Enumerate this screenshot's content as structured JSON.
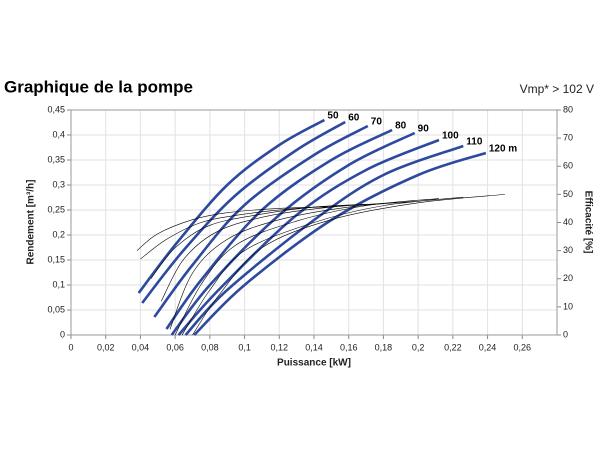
{
  "chart_data": {
    "type": "line",
    "title": "Graphique de la pompe",
    "subtitle": "Vmp* > 102 V",
    "x_label": "Puissance [kW]",
    "y_label": "Rendement [m³/h]",
    "y2_label": "Efficacité [%]",
    "grid": true,
    "xlim": [
      0,
      0.28
    ],
    "xticks": [
      0,
      {
        "value": 0.02,
        "label": "0,02"
      },
      {
        "value": 0.04,
        "label": "0,04"
      },
      {
        "value": 0.06,
        "label": "0,06"
      },
      {
        "value": 0.08,
        "label": "0,08"
      },
      {
        "value": 0.1,
        "label": "0,1"
      },
      {
        "value": 0.12,
        "label": "0,12"
      },
      {
        "value": 0.14,
        "label": "0,14"
      },
      {
        "value": 0.16,
        "label": "0,16"
      },
      {
        "value": 0.18,
        "label": "0,18"
      },
      {
        "value": 0.2,
        "label": "0,2"
      },
      {
        "value": 0.22,
        "label": "0,22"
      },
      {
        "value": 0.24,
        "label": "0,24"
      },
      {
        "value": 0.26,
        "label": "0,26"
      }
    ],
    "ylim": [
      0,
      0.45
    ],
    "yticks": [
      0,
      {
        "value": 0.05,
        "label": "0,05"
      },
      {
        "value": 0.1,
        "label": "0,1"
      },
      {
        "value": 0.15,
        "label": "0,15"
      },
      {
        "value": 0.2,
        "label": "0,2"
      },
      {
        "value": 0.25,
        "label": "0,25"
      },
      {
        "value": 0.3,
        "label": "0,3"
      },
      {
        "value": 0.35,
        "label": "0,35"
      },
      {
        "value": 0.4,
        "label": "0,4"
      },
      {
        "value": 0.45,
        "label": "0,45"
      }
    ],
    "y2lim": [
      0,
      80
    ],
    "y2ticks": [
      0,
      10,
      20,
      30,
      40,
      50,
      60,
      70,
      80
    ],
    "series": [
      {
        "name": "50",
        "color": "#2e4a9e",
        "x": [
          0.039,
          0.06,
          0.09,
          0.12,
          0.146
        ],
        "values": [
          0.084,
          0.18,
          0.3,
          0.38,
          0.43
        ]
      },
      {
        "name": "60",
        "color": "#2e4a9e",
        "x": [
          0.041,
          0.065,
          0.095,
          0.13,
          0.158
        ],
        "values": [
          0.064,
          0.17,
          0.28,
          0.37,
          0.426
        ]
      },
      {
        "name": "70",
        "color": "#2e4a9e",
        "x": [
          0.048,
          0.07,
          0.1,
          0.14,
          0.171
        ],
        "values": [
          0.036,
          0.14,
          0.26,
          0.36,
          0.418
        ]
      },
      {
        "name": "80",
        "color": "#2e4a9e",
        "x": [
          0.055,
          0.075,
          0.11,
          0.15,
          0.185
        ],
        "values": [
          0.012,
          0.11,
          0.25,
          0.35,
          0.41
        ]
      },
      {
        "name": "90",
        "color": "#2e4a9e",
        "x": [
          0.058,
          0.08,
          0.12,
          0.16,
          0.198
        ],
        "values": [
          0.0,
          0.1,
          0.24,
          0.34,
          0.404
        ]
      },
      {
        "name": "100",
        "color": "#2e4a9e",
        "x": [
          0.062,
          0.085,
          0.13,
          0.17,
          0.212
        ],
        "values": [
          0.0,
          0.09,
          0.24,
          0.33,
          0.39
        ]
      },
      {
        "name": "110",
        "color": "#2e4a9e",
        "x": [
          0.066,
          0.09,
          0.14,
          0.18,
          0.226
        ],
        "values": [
          0.0,
          0.09,
          0.23,
          0.32,
          0.378
        ]
      },
      {
        "name": "120 m",
        "color": "#2e4a9e",
        "x": [
          0.071,
          0.1,
          0.15,
          0.2,
          0.239
        ],
        "values": [
          0.0,
          0.1,
          0.23,
          0.32,
          0.364
        ]
      },
      {
        "color": "#000000",
        "axis": "y2",
        "x": [
          0.038,
          0.05,
          0.07,
          0.09,
          0.12,
          0.148
        ],
        "values": [
          30,
          36,
          41,
          43.5,
          45,
          45.5
        ]
      },
      {
        "color": "#000000",
        "axis": "y2",
        "x": [
          0.04,
          0.055,
          0.075,
          0.1,
          0.13,
          0.158
        ],
        "values": [
          27,
          34,
          40,
          43,
          45,
          46
        ]
      },
      {
        "color": "#000000",
        "axis": "y2",
        "x": [
          0.046,
          0.06,
          0.08,
          0.11,
          0.14,
          0.171
        ],
        "values": [
          20,
          31,
          39,
          43,
          45.5,
          46.5
        ]
      },
      {
        "color": "#000000",
        "axis": "y2",
        "x": [
          0.052,
          0.065,
          0.085,
          0.115,
          0.15,
          0.185
        ],
        "values": [
          12,
          27,
          37,
          42.5,
          45.5,
          47
        ]
      },
      {
        "color": "#000000",
        "axis": "y2",
        "x": [
          0.057,
          0.07,
          0.09,
          0.12,
          0.16,
          0.198
        ],
        "values": [
          2,
          22,
          34,
          41,
          45.5,
          47.5
        ]
      },
      {
        "color": "#000000",
        "axis": "y2",
        "x": [
          0.06,
          0.075,
          0.095,
          0.13,
          0.17,
          0.212
        ],
        "values": [
          0,
          18,
          32,
          40.5,
          46,
          48.5
        ]
      },
      {
        "color": "#000000",
        "axis": "y2",
        "x": [
          0.064,
          0.08,
          0.1,
          0.14,
          0.18,
          0.226
        ],
        "values": [
          0,
          16,
          30,
          40,
          46,
          49
        ]
      },
      {
        "color": "#000000",
        "axis": "y2",
        "x": [
          0.07,
          0.085,
          0.11,
          0.15,
          0.2,
          0.25
        ],
        "values": [
          0,
          14,
          31,
          41,
          47,
          50
        ]
      }
    ]
  }
}
